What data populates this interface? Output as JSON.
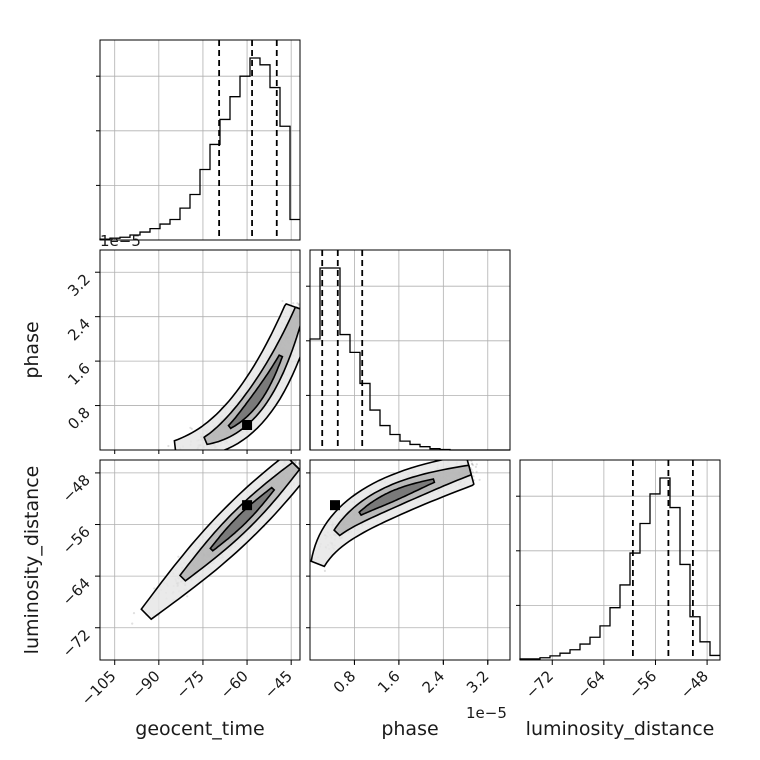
{
  "chart_data": {
    "type": "corner",
    "parameters": [
      "geocent_time",
      "phase",
      "luminosity_distance"
    ],
    "axis_labels": {
      "x": [
        "geocent_time",
        "phase",
        "luminosity_distance"
      ],
      "y_row1": "phase",
      "y_row2": "luminosity_distance"
    },
    "ranges": {
      "geocent_time": [
        -110,
        -42
      ],
      "phase": [
        0.0,
        3.6
      ],
      "luminosity_distance": [
        -77,
        -46
      ]
    },
    "offset_labels": [
      "1e−5",
      "1e−5"
    ],
    "ticks": {
      "geocent_time": [
        {
          "v": -105,
          "label": "−105"
        },
        {
          "v": -90,
          "label": "−90"
        },
        {
          "v": -75,
          "label": "−75"
        },
        {
          "v": -60,
          "label": "−60"
        },
        {
          "v": -45,
          "label": "−45"
        }
      ],
      "phase": [
        {
          "v": 0.8,
          "label": "0.8"
        },
        {
          "v": 1.6,
          "label": "1.6"
        },
        {
          "v": 2.4,
          "label": "2.4"
        },
        {
          "v": 3.2,
          "label": "3.2"
        }
      ],
      "luminosity_distance": [
        {
          "v": -72,
          "label": "−72"
        },
        {
          "v": -64,
          "label": "−64"
        },
        {
          "v": -56,
          "label": "−56"
        },
        {
          "v": -48,
          "label": "−48"
        }
      ]
    },
    "histograms": {
      "geocent_time": {
        "bins": [
          -110,
          -106.6,
          -103.2,
          -99.8,
          -96.4,
          -93,
          -89.6,
          -86.2,
          -82.8,
          -79.4,
          -76,
          -72.6,
          -69.2,
          -65.8,
          -62.4,
          -59,
          -55.6,
          -52.2,
          -48.8,
          -45.4,
          -42
        ],
        "counts": [
          0.004,
          0.008,
          0.012,
          0.022,
          0.035,
          0.05,
          0.07,
          0.09,
          0.14,
          0.2,
          0.31,
          0.42,
          0.53,
          0.63,
          0.72,
          0.8,
          0.77,
          0.67,
          0.5,
          0.09
        ],
        "quantiles": [
          -69.5,
          -58.3,
          -49.9
        ]
      },
      "phase": {
        "bins": [
          0.0,
          0.18,
          0.36,
          0.54,
          0.72,
          0.9,
          1.08,
          1.26,
          1.44,
          1.62,
          1.8,
          1.98,
          2.16,
          2.34,
          2.52,
          2.7,
          2.88,
          3.06,
          3.24,
          3.42,
          3.6
        ],
        "counts": [
          0.5,
          0.82,
          0.82,
          0.52,
          0.44,
          0.3,
          0.18,
          0.11,
          0.07,
          0.04,
          0.025,
          0.015,
          0.006,
          0.002,
          0.0,
          0.0,
          0.0,
          0.0,
          0.0,
          0.0
        ],
        "quantiles": [
          0.22,
          0.5,
          0.94
        ]
      },
      "luminosity_distance": {
        "bins": [
          -77,
          -75.45,
          -73.9,
          -72.35,
          -70.8,
          -69.25,
          -67.7,
          -66.15,
          -64.6,
          -63.05,
          -61.5,
          -59.95,
          -58.4,
          -56.85,
          -55.3,
          -53.75,
          -52.2,
          -50.65,
          -49.1,
          -47.55,
          -46
        ],
        "counts": [
          0.005,
          0.005,
          0.01,
          0.018,
          0.03,
          0.045,
          0.07,
          0.1,
          0.15,
          0.23,
          0.33,
          0.47,
          0.6,
          0.73,
          0.8,
          0.67,
          0.42,
          0.19,
          0.08,
          0.02
        ],
        "quantiles": [
          -59.5,
          -54.0,
          -50.2
        ]
      }
    },
    "joint": [
      {
        "x": "geocent_time",
        "y": "phase",
        "mode": {
          "x": -60,
          "y": 0.45
        },
        "spread": {
          "along": 0.09,
          "across": 0.13
        },
        "curvature": "upturn"
      },
      {
        "x": "geocent_time",
        "y": "luminosity_distance",
        "mode": {
          "x": -60,
          "y": -53
        },
        "spread": {
          "along": 0.1,
          "across": 0.12
        },
        "curvature": "linear"
      },
      {
        "x": "phase",
        "y": "luminosity_distance",
        "mode": {
          "x": 0.45,
          "y": -53
        },
        "spread": {
          "along": 0.1,
          "across": 0.12
        },
        "curvature": "sqrt"
      }
    ],
    "grid": true,
    "colors": {
      "line": "#000000",
      "grid": "#b0b0b0",
      "samples": "#555555",
      "frame": "#000000"
    }
  }
}
